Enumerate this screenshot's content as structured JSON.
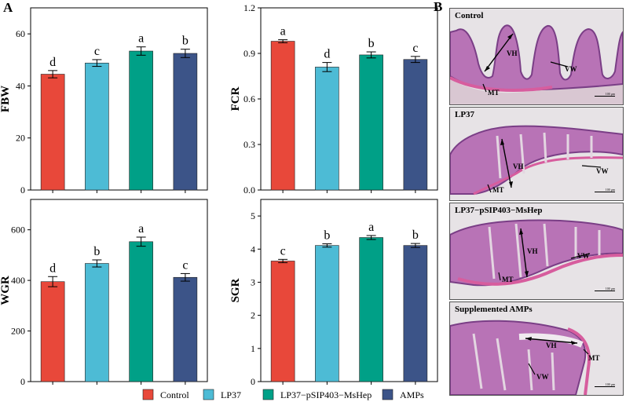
{
  "panel_labels": {
    "A": "A",
    "B": "B"
  },
  "colors": {
    "Control": "#e8483a",
    "LP37": "#4dbbd5",
    "LP37-pSIP403-MsHep": "#00a087",
    "AMPs": "#3c5488"
  },
  "legend": [
    "Control",
    "LP37",
    "LP37−pSIP403−MsHep",
    "AMPs"
  ],
  "chart_data": [
    {
      "type": "bar",
      "ylabel": "FBW",
      "categories": [
        "Control",
        "LP37",
        "LP37-pSIP403-MsHep",
        "AMPs"
      ],
      "values": [
        44.5,
        48.8,
        53.4,
        52.5
      ],
      "errors": [
        1.4,
        1.3,
        1.6,
        1.6
      ],
      "letters": [
        "d",
        "c",
        "a",
        "b"
      ],
      "ylim": [
        0,
        70
      ],
      "ticks": [
        0,
        20,
        40,
        60
      ],
      "tick_labels": [
        "0",
        "20",
        "40",
        "60"
      ]
    },
    {
      "type": "bar",
      "ylabel": "FCR",
      "categories": [
        "Control",
        "LP37",
        "LP37-pSIP403-MsHep",
        "AMPs"
      ],
      "values": [
        0.98,
        0.81,
        0.89,
        0.86
      ],
      "errors": [
        0.01,
        0.03,
        0.02,
        0.02
      ],
      "letters": [
        "a",
        "d",
        "b",
        "c"
      ],
      "ylim": [
        0,
        1.2
      ],
      "ticks": [
        0,
        0.3,
        0.6,
        0.9,
        1.2
      ],
      "tick_labels": [
        "0.0",
        "0.3",
        "0.6",
        "0.9",
        "1.2"
      ]
    },
    {
      "type": "bar",
      "ylabel": "WGR",
      "categories": [
        "Control",
        "LP37",
        "LP37-pSIP403-MsHep",
        "AMPs"
      ],
      "values": [
        395,
        467,
        553,
        412
      ],
      "errors": [
        20,
        14,
        18,
        15
      ],
      "letters": [
        "d",
        "b",
        "a",
        "c"
      ],
      "ylim": [
        0,
        720
      ],
      "ticks": [
        0,
        200,
        400,
        600
      ],
      "tick_labels": [
        "0",
        "200",
        "400",
        "600"
      ]
    },
    {
      "type": "bar",
      "ylabel": "SGR",
      "categories": [
        "Control",
        "LP37",
        "LP37-pSIP403-MsHep",
        "AMPs"
      ],
      "values": [
        3.64,
        4.11,
        4.35,
        4.11
      ],
      "errors": [
        0.05,
        0.05,
        0.06,
        0.06
      ],
      "letters": [
        "c",
        "b",
        "a",
        "b"
      ],
      "ylim": [
        0,
        5.5
      ],
      "ticks": [
        0,
        1,
        2,
        3,
        4,
        5
      ],
      "tick_labels": [
        "0",
        "1",
        "2",
        "3",
        "4",
        "5"
      ]
    }
  ],
  "histology": [
    {
      "label": "Control",
      "vh": "VH",
      "vw": "VW",
      "mt": "MT",
      "scale": "100 μm"
    },
    {
      "label": "LP37",
      "vh": "VH",
      "vw": "VW",
      "mt": "MT",
      "scale": "100 μm"
    },
    {
      "label": "LP37−pSIP403−MsHep",
      "vh": "VH",
      "vw": "VW",
      "mt": "MT",
      "scale": "100 μm"
    },
    {
      "label": "Supplemented AMPs",
      "vh": "VH",
      "vw": "VW",
      "mt": "MT",
      "scale": "100 μm"
    }
  ]
}
